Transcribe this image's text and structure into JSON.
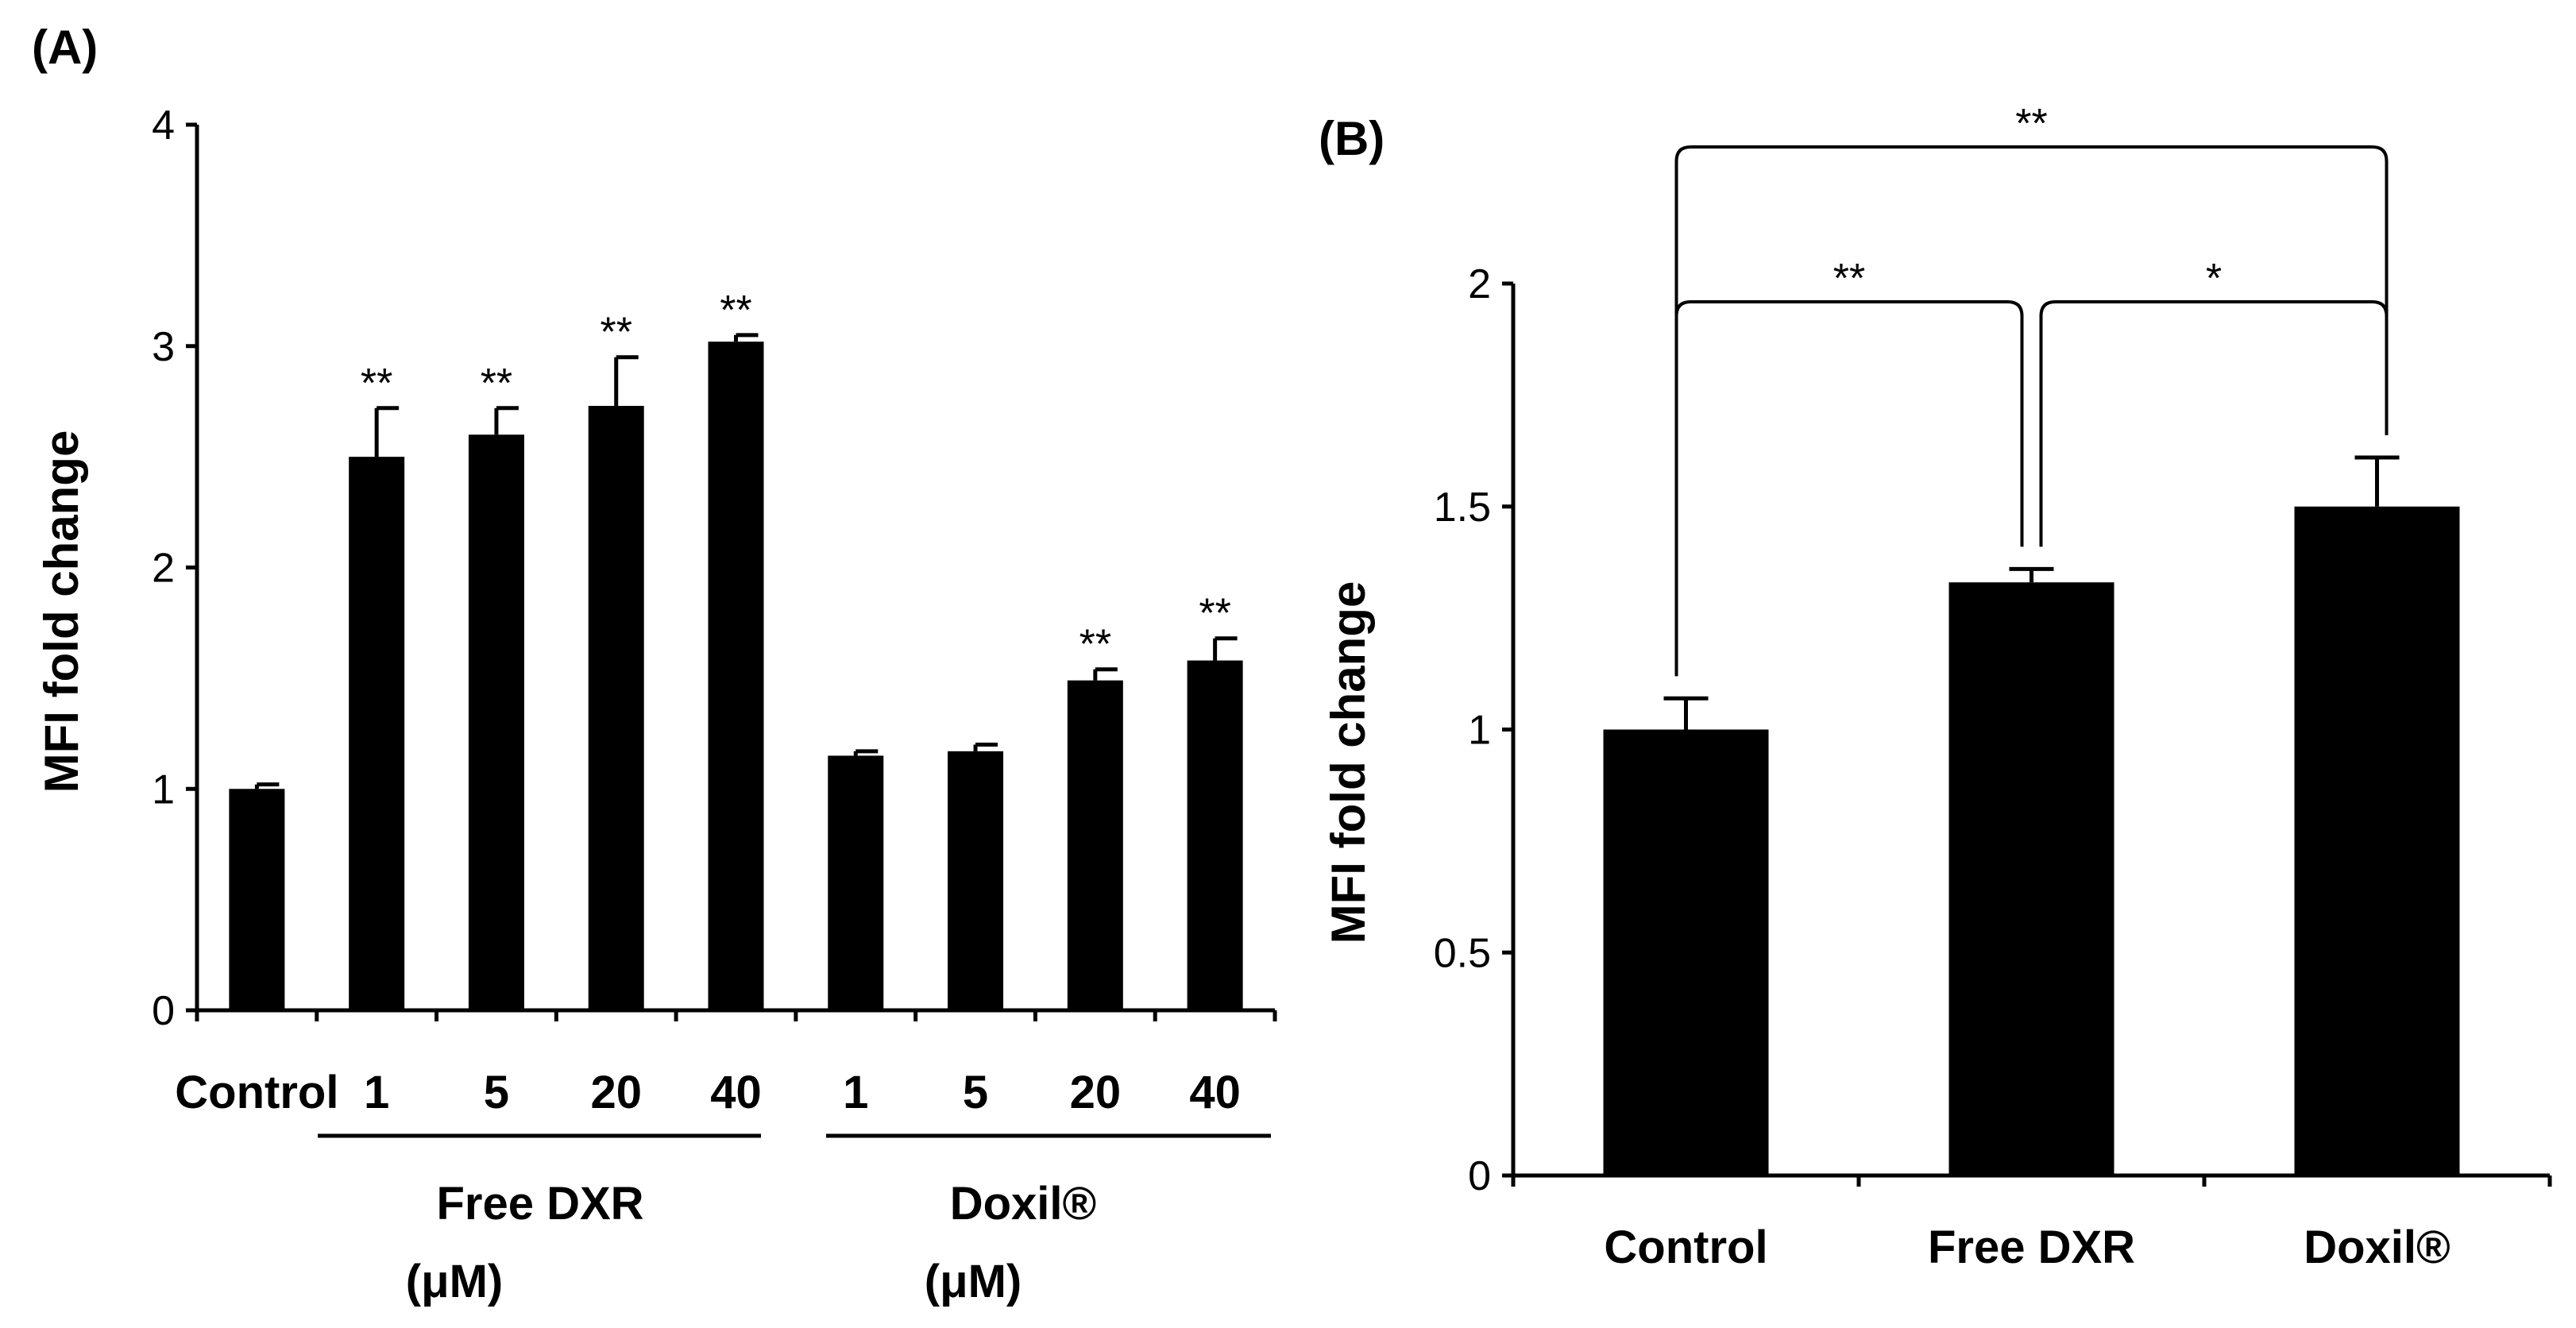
{
  "chart_data": [
    {
      "panel": "(A)",
      "type": "bar",
      "ylabel": "MFI fold change",
      "ylim": [
        0,
        4
      ],
      "yticks": [
        "0",
        "1",
        "2",
        "3",
        "4"
      ],
      "categories": [
        "Control",
        "1",
        "5",
        "20",
        "40",
        "1",
        "5",
        "20",
        "40"
      ],
      "values": [
        1.0,
        2.5,
        2.6,
        2.73,
        3.02,
        1.15,
        1.17,
        1.49,
        1.58
      ],
      "errors": [
        0.02,
        0.22,
        0.12,
        0.22,
        0.03,
        0.02,
        0.03,
        0.05,
        0.1
      ],
      "significance": [
        "",
        "**",
        "**",
        "**",
        "**",
        "",
        "",
        "**",
        "**"
      ],
      "groups": [
        {
          "label": "Free DXR",
          "unit": "(μM)"
        },
        {
          "label": "Doxil®",
          "unit": "(μM)"
        }
      ]
    },
    {
      "panel": "(B)",
      "type": "bar",
      "ylabel": "MFI fold change",
      "ylim": [
        0,
        2
      ],
      "yticks": [
        "0",
        "0.5",
        "1",
        "1.5",
        "2"
      ],
      "categories": [
        "Control",
        "Free DXR",
        "Doxil®"
      ],
      "values": [
        1.0,
        1.33,
        1.5
      ],
      "errors": [
        0.07,
        0.03,
        0.11
      ],
      "comparisons": [
        {
          "label": "**",
          "pair": [
            "Control",
            "Free DXR"
          ]
        },
        {
          "label": "*",
          "pair": [
            "Free DXR",
            "Doxil®"
          ]
        },
        {
          "label": "**",
          "pair": [
            "Control",
            "Doxil®"
          ]
        }
      ]
    }
  ]
}
